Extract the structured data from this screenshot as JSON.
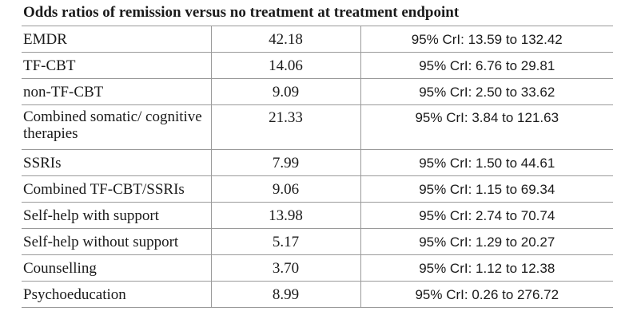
{
  "table": {
    "caption": "Odds ratios of remission versus no treatment at treatment endpoint",
    "rows": [
      {
        "treatment": "EMDR",
        "odds_ratio": "42.18",
        "cri": "95% CrI: 13.59 to 132.42"
      },
      {
        "treatment": "TF-CBT",
        "odds_ratio": "14.06",
        "cri": "95% CrI: 6.76 to 29.81"
      },
      {
        "treatment": "non-TF-CBT",
        "odds_ratio": "9.09",
        "cri": "95% CrI: 2.50 to 33.62"
      },
      {
        "treatment": "Combined somatic/ cognitive therapies",
        "odds_ratio": "21.33",
        "cri": "95% CrI: 3.84 to 121.63"
      },
      {
        "treatment": "SSRIs",
        "odds_ratio": "7.99",
        "cri": "95% CrI: 1.50 to 44.61"
      },
      {
        "treatment": "Combined TF-CBT/SSRIs",
        "odds_ratio": "9.06",
        "cri": "95% CrI: 1.15 to 69.34"
      },
      {
        "treatment": "Self-help with support",
        "odds_ratio": "13.98",
        "cri": "95% CrI: 2.74 to 70.74"
      },
      {
        "treatment": "Self-help without support",
        "odds_ratio": "5.17",
        "cri": "95% CrI: 1.29 to 20.27"
      },
      {
        "treatment": "Counselling",
        "odds_ratio": "3.70",
        "cri": "95% CrI: 1.12 to 12.38"
      },
      {
        "treatment": "Psychoeducation",
        "odds_ratio": "8.99",
        "cri": "95% CrI: 0.26 to 276.72"
      }
    ]
  }
}
